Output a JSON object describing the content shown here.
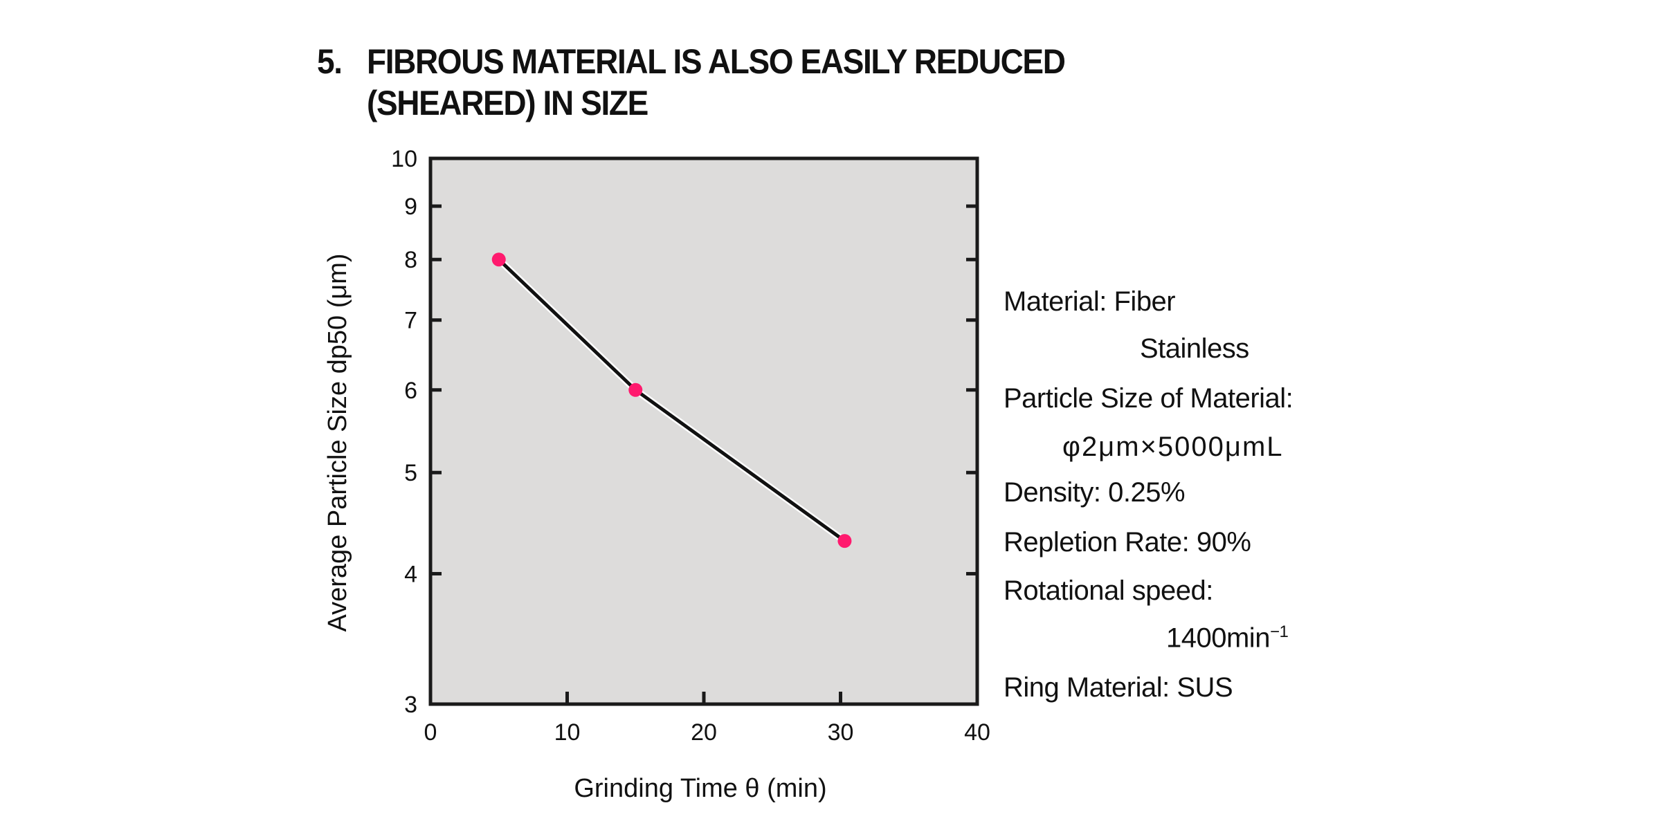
{
  "title": {
    "number": "5.",
    "line1": "FIBROUS MATERIAL IS ALSO EASILY REDUCED",
    "line2": "(SHEARED) IN SIZE"
  },
  "chart_data": {
    "type": "line",
    "title": "FIBROUS MATERIAL IS ALSO EASILY REDUCED (SHEARED) IN SIZE",
    "xlabel": "Grinding Time θ (min)",
    "ylabel": "Average Particle Size dp50 (μm)",
    "xlim": [
      0,
      40
    ],
    "ylim": [
      3,
      10
    ],
    "yscale": "log",
    "xticks": [
      "0",
      "10",
      "20",
      "30",
      "40"
    ],
    "yticks": [
      "3",
      "4",
      "5",
      "6",
      "7",
      "8",
      "9",
      "10"
    ],
    "grid": false,
    "series": [
      {
        "name": "Fiber Stainless",
        "x": [
          5,
          15,
          30.3
        ],
        "y": [
          8.0,
          6.0,
          4.3
        ],
        "color": "#ff1a6e",
        "line_color": "#111111"
      }
    ],
    "plot_background": "#dddcdb"
  },
  "conditions": {
    "material_label": "Material: Fiber",
    "material_cont": "Stainless",
    "particle_size_label": "Particle Size of Material:",
    "particle_size_value": "φ2μm×5000μmL",
    "density": "Density: 0.25%",
    "repletion_rate": "Repletion Rate: 90%",
    "rotational_speed_label": "Rotational speed:",
    "rotational_speed_value": "1400min",
    "rotational_speed_exp": "−1",
    "ring_material": "Ring Material: SUS"
  }
}
